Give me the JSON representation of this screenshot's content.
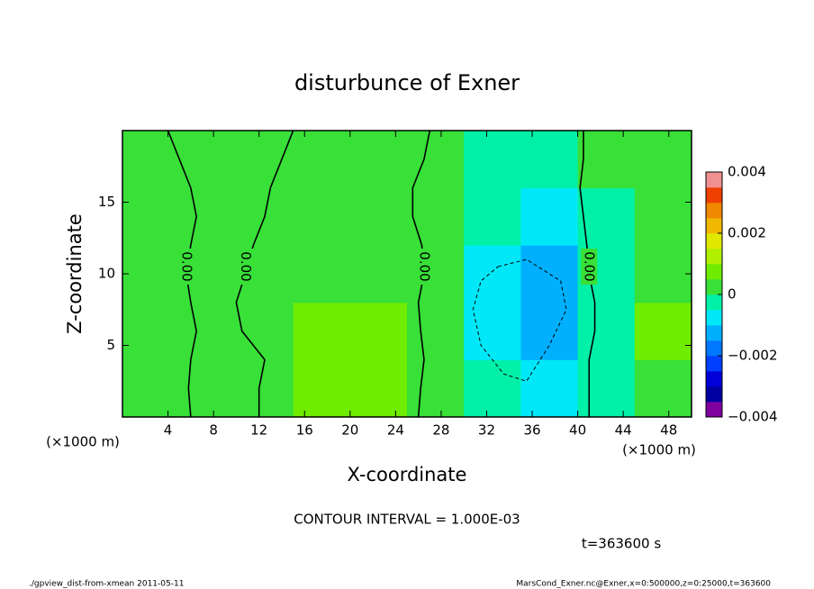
{
  "chart_data": {
    "type": "contour",
    "title": "disturbunce of Exner",
    "x_label": "X-coordinate",
    "y_label": "Z-coordinate",
    "x_unit_left": "(×1000 m)",
    "x_unit_right": "(×1000 m)",
    "contour_interval": "CONTOUR INTERVAL = 1.000E-03",
    "time_label": "t=363600 s",
    "footer_left": "./gpview_dist-from-xmean  2011-05-11",
    "footer_right": "MarsCond_Exner.nc@Exner,x=0:500000,z=0:25000,t=363600",
    "xlim": [
      0,
      50
    ],
    "ylim": [
      0,
      20
    ],
    "xticks": [
      4,
      8,
      12,
      16,
      20,
      24,
      28,
      32,
      36,
      40,
      44,
      48
    ],
    "yticks": [
      5,
      10,
      15
    ],
    "x": [
      2.5,
      7.5,
      12.5,
      17.5,
      22.5,
      27.5,
      32.5,
      37.5,
      42.5,
      47.5
    ],
    "y": [
      2,
      6,
      10,
      14,
      18
    ],
    "z": [
      [
        0.0003,
        0.0002,
        0.0002,
        0.0006,
        0.0006,
        0.0004,
        -0.0004,
        -0.0008,
        -0.0002,
        0.0003
      ],
      [
        0.0003,
        0.0002,
        0.0002,
        0.0006,
        0.0006,
        0.0003,
        -0.0008,
        -0.0013,
        -0.0004,
        0.0006
      ],
      [
        0.0003,
        0.0001,
        0.0001,
        0.0003,
        0.0003,
        0.0002,
        -0.0007,
        -0.0012,
        -0.0003,
        0.0003
      ],
      [
        0.0002,
        0.0001,
        0.0001,
        0.0002,
        0.0002,
        0.0001,
        -0.0005,
        -0.0006,
        -0.0001,
        0.0003
      ],
      [
        0.0002,
        0.0001,
        0.0001,
        0.0002,
        0.0002,
        0.0002,
        -0.0002,
        -0.0003,
        0.0,
        0.0002
      ]
    ],
    "levels": [
      -0.004,
      -0.0035,
      -0.003,
      -0.0025,
      -0.002,
      -0.0015,
      -0.001,
      -0.0005,
      0,
      0.0005,
      0.001,
      0.0015,
      0.002,
      0.0025,
      0.003,
      0.0035,
      0.004
    ],
    "colors": [
      "#8000a0",
      "#0000a0",
      "#0000d8",
      "#0040ff",
      "#0078ff",
      "#00b0ff",
      "#00e8f8",
      "#00f0a8",
      "#38e038",
      "#70ec00",
      "#b0f000",
      "#e0e800",
      "#f0b800",
      "#f08800",
      "#f04000",
      "#f09090"
    ],
    "colorbar_lim": [
      -0.004,
      0.004
    ],
    "colorbar_ticks": [
      {
        "value": -0.004,
        "label": "−0.004"
      },
      {
        "value": -0.002,
        "label": "−0.002"
      },
      0,
      0.002,
      0.004
    ],
    "contours": [
      {
        "level": 0,
        "label": "0.00",
        "dashed": false,
        "x": [
          4,
          5,
          6,
          6.5,
          6,
          5.6,
          6,
          6.5,
          6,
          5.8,
          6
        ],
        "z": [
          20,
          18,
          16,
          14,
          12,
          10,
          8,
          6,
          4,
          2,
          0
        ]
      },
      {
        "level": 0,
        "label": "0.00",
        "dashed": false,
        "x": [
          15,
          14,
          13,
          12.5,
          11.5,
          10.8,
          10,
          10.5,
          12.5,
          12,
          12
        ],
        "z": [
          20,
          18,
          16,
          14,
          12,
          10,
          8,
          6,
          4,
          2,
          0
        ]
      },
      {
        "level": 0,
        "label": "0.00",
        "dashed": false,
        "x": [
          27,
          26.5,
          25.5,
          25.5,
          26.3,
          26.5,
          26,
          26.2,
          26.5,
          26.2,
          26
        ],
        "z": [
          20,
          18,
          16,
          14,
          12,
          10,
          8,
          6,
          4,
          2,
          0
        ]
      },
      {
        "level": 0,
        "label": "0.00",
        "dashed": false,
        "x": [
          40.5,
          40.5,
          40.2,
          40.5,
          40.8,
          41,
          41.5,
          41.5,
          41,
          41,
          41
        ],
        "z": [
          20,
          18,
          16,
          14,
          12,
          10,
          8,
          6,
          4,
          2,
          0
        ]
      },
      {
        "level": -0.001,
        "dashed": true,
        "x": [
          33,
          35.5,
          38.5,
          39,
          37.5,
          35.5,
          33.5,
          31.5,
          30.8,
          31.5,
          33
        ],
        "z": [
          10.5,
          11,
          9.5,
          7.5,
          5,
          2.5,
          3,
          5,
          7.5,
          9.5,
          10.5
        ]
      }
    ]
  }
}
